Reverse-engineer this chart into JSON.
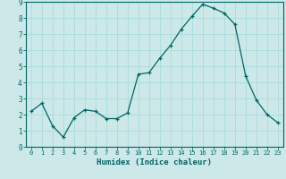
{
  "x": [
    0,
    1,
    2,
    3,
    4,
    5,
    6,
    7,
    8,
    9,
    10,
    11,
    12,
    13,
    14,
    15,
    16,
    17,
    18,
    19,
    20,
    21,
    22,
    23
  ],
  "y": [
    2.2,
    2.7,
    1.3,
    0.6,
    1.8,
    2.3,
    2.2,
    1.75,
    1.75,
    2.1,
    4.5,
    4.6,
    5.5,
    6.3,
    7.3,
    8.1,
    8.85,
    8.6,
    8.3,
    7.6,
    4.4,
    2.9,
    2.0,
    1.5
  ],
  "line_color": "#006666",
  "marker_color": "#006666",
  "bg_color": "#cce8e8",
  "grid_color": "#aadddd",
  "xlabel": "Humidex (Indice chaleur)",
  "ylim": [
    0,
    9
  ],
  "yticks": [
    0,
    1,
    2,
    3,
    4,
    5,
    6,
    7,
    8,
    9
  ],
  "xticks": [
    0,
    1,
    2,
    3,
    4,
    5,
    6,
    7,
    8,
    9,
    10,
    11,
    12,
    13,
    14,
    15,
    16,
    17,
    18,
    19,
    20,
    21,
    22,
    23
  ]
}
